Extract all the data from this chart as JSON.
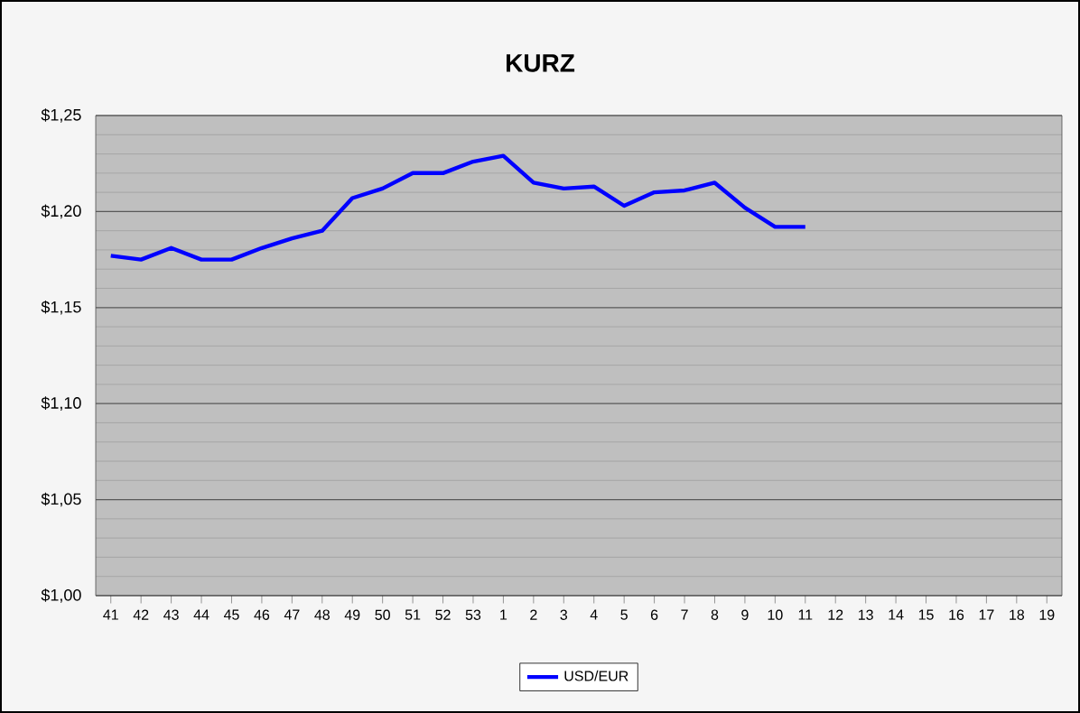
{
  "chart_data": {
    "type": "line",
    "title": "KURZ",
    "categories": [
      "41",
      "42",
      "43",
      "44",
      "45",
      "46",
      "47",
      "48",
      "49",
      "50",
      "51",
      "52",
      "53",
      "1",
      "2",
      "3",
      "4",
      "5",
      "6",
      "7",
      "8",
      "9",
      "10",
      "11",
      "12",
      "13",
      "14",
      "15",
      "16",
      "17",
      "18",
      "19"
    ],
    "series": [
      {
        "name": "USD/EUR",
        "color": "#0000ff",
        "values": [
          1.177,
          1.175,
          1.181,
          1.175,
          1.175,
          1.181,
          1.186,
          1.19,
          1.207,
          1.212,
          1.22,
          1.22,
          1.226,
          1.229,
          1.215,
          1.212,
          1.213,
          1.203,
          1.21,
          1.211,
          1.215,
          1.202,
          1.192,
          1.192,
          null,
          null,
          null,
          null,
          null,
          null,
          null,
          null
        ]
      }
    ],
    "ylim": [
      1.0,
      1.25
    ],
    "yticks": [
      {
        "value": 1.0,
        "label": "$1,00"
      },
      {
        "value": 1.05,
        "label": "$1,05"
      },
      {
        "value": 1.1,
        "label": "$1,10"
      },
      {
        "value": 1.15,
        "label": "$1,15"
      },
      {
        "value": 1.2,
        "label": "$1,20"
      },
      {
        "value": 1.25,
        "label": "$1,25"
      }
    ],
    "grid": "y",
    "legend": "bottom",
    "marker": "none",
    "line_style": "solid"
  }
}
